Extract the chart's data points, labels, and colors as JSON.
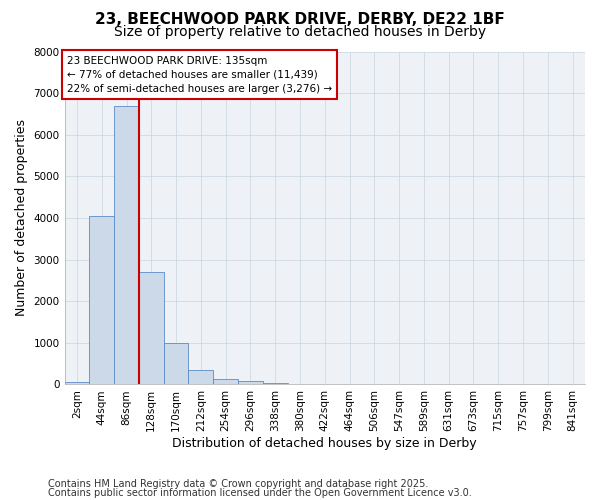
{
  "title_line1": "23, BEECHWOOD PARK DRIVE, DERBY, DE22 1BF",
  "title_line2": "Size of property relative to detached houses in Derby",
  "xlabel": "Distribution of detached houses by size in Derby",
  "ylabel": "Number of detached properties",
  "bar_color": "#ccd9e8",
  "bar_edge_color": "#5b8bc9",
  "grid_color": "#c8d4e0",
  "background_color": "#eef2f7",
  "vline_color": "#cc0000",
  "vline_x_index": 3,
  "annotation_box_color": "#cc0000",
  "annotation_text_line1": "23 BEECHWOOD PARK DRIVE: 135sqm",
  "annotation_text_line2": "← 77% of detached houses are smaller (11,439)",
  "annotation_text_line3": "22% of semi-detached houses are larger (3,276) →",
  "categories": [
    "2sqm",
    "44sqm",
    "86sqm",
    "128sqm",
    "170sqm",
    "212sqm",
    "254sqm",
    "296sqm",
    "338sqm",
    "380sqm",
    "422sqm",
    "464sqm",
    "506sqm",
    "547sqm",
    "589sqm",
    "631sqm",
    "673sqm",
    "715sqm",
    "757sqm",
    "799sqm",
    "841sqm"
  ],
  "values": [
    50,
    4050,
    6700,
    2700,
    1000,
    350,
    130,
    80,
    40,
    0,
    0,
    0,
    0,
    0,
    0,
    0,
    0,
    0,
    0,
    0,
    0
  ],
  "ylim": [
    0,
    8000
  ],
  "yticks": [
    0,
    1000,
    2000,
    3000,
    4000,
    5000,
    6000,
    7000,
    8000
  ],
  "footnote1": "Contains HM Land Registry data © Crown copyright and database right 2025.",
  "footnote2": "Contains public sector information licensed under the Open Government Licence v3.0.",
  "title_fontsize": 11,
  "subtitle_fontsize": 10,
  "tick_fontsize": 7.5,
  "label_fontsize": 9,
  "footnote_fontsize": 7
}
